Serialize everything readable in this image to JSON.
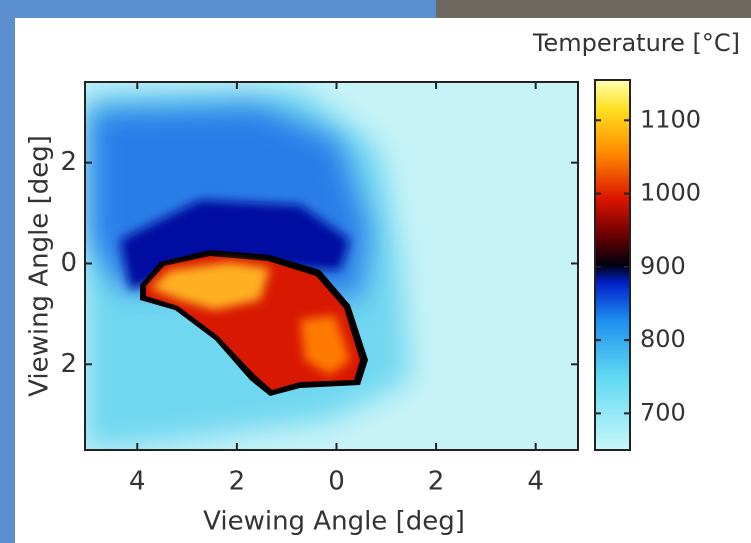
{
  "chart_data": {
    "type": "heatmap",
    "xlabel": "Viewing Angle [deg]",
    "ylabel": "Viewing Angle [deg]",
    "colorbar_label": "Temperature [°C]",
    "xlim": [
      -5.05,
      4.85
    ],
    "xticks": [
      {
        "value": -4,
        "label": "4"
      },
      {
        "value": -2,
        "label": "2"
      },
      0,
      2,
      4
    ],
    "ylim": [
      -3.7,
      3.6
    ],
    "yticks": [
      {
        "value": 2,
        "label": "2"
      },
      0,
      {
        "value": -2,
        "label": "2"
      }
    ],
    "clim": [
      650,
      1155
    ],
    "cticks": [
      700,
      800,
      900,
      1000,
      1100
    ]
  }
}
